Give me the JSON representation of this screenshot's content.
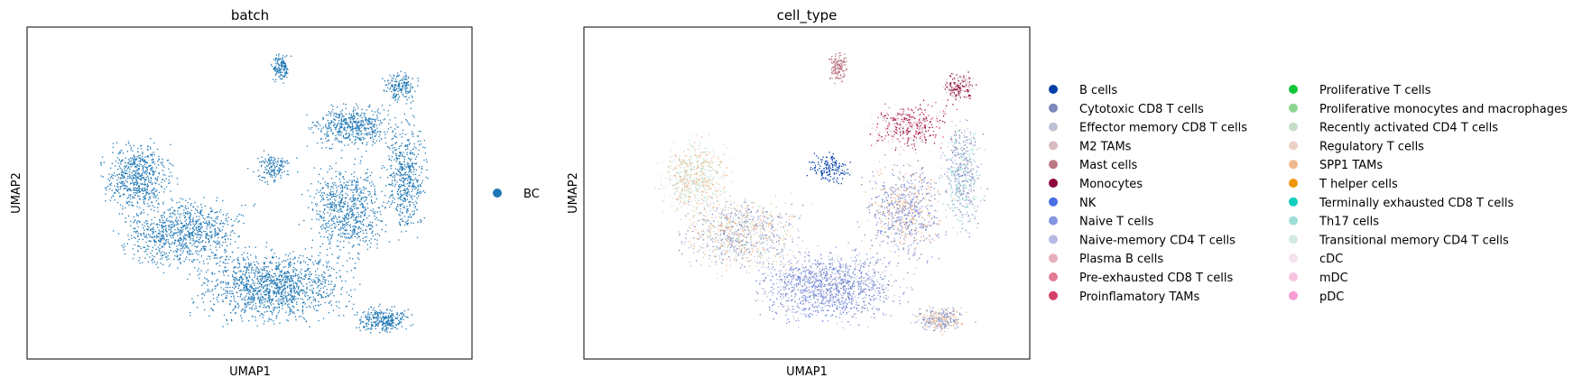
{
  "chart_data": [
    {
      "type": "scatter",
      "title": "batch",
      "xlabel": "UMAP1",
      "ylabel": "UMAP2",
      "legend": {
        "placement": "right",
        "entries": [
          {
            "label": "BC",
            "color": "#1f77b4"
          }
        ]
      },
      "grid": false,
      "ticks": false
    },
    {
      "type": "scatter",
      "title": "cell_type",
      "xlabel": "UMAP1",
      "ylabel": "UMAP2",
      "grid": false,
      "ticks": false,
      "legend": {
        "placement": "right",
        "columns": 2,
        "entries": [
          {
            "label": "B cells",
            "color": "#023fa5"
          },
          {
            "label": "Cytotoxic CD8 T cells",
            "color": "#7d87b9"
          },
          {
            "label": "Effector memory CD8 T cells",
            "color": "#bec1d4"
          },
          {
            "label": "M2 TAMs",
            "color": "#d6bcc0"
          },
          {
            "label": "Mast cells",
            "color": "#bb7784"
          },
          {
            "label": "Monocytes",
            "color": "#8e063b"
          },
          {
            "label": "NK",
            "color": "#4a6fe3"
          },
          {
            "label": "Naive T cells",
            "color": "#8595e1"
          },
          {
            "label": "Naive-memory CD4 T cells",
            "color": "#b5bbe3"
          },
          {
            "label": "Plasma B cells",
            "color": "#e6afb9"
          },
          {
            "label": "Pre-exhausted CD8 T cells",
            "color": "#e07b91"
          },
          {
            "label": "Proinflamatory TAMs",
            "color": "#d33f6a"
          },
          {
            "label": "Proliferative T cells",
            "color": "#11c638"
          },
          {
            "label": "Proliferative monocytes and macrophages",
            "color": "#8dd593"
          },
          {
            "label": "Recently activated CD4 T cells",
            "color": "#c6dec7"
          },
          {
            "label": "Regulatory T cells",
            "color": "#ead3c6"
          },
          {
            "label": "SPP1 TAMs",
            "color": "#f0b98d"
          },
          {
            "label": "T helper cells",
            "color": "#ef9708"
          },
          {
            "label": "Terminally exhausted CD8 T cells",
            "color": "#0fcfc0"
          },
          {
            "label": "Th17 cells",
            "color": "#9cded6"
          },
          {
            "label": "Transitional memory CD4 T cells",
            "color": "#d5eae7"
          },
          {
            "label": "cDC",
            "color": "#f3e1eb"
          },
          {
            "label": "mDC",
            "color": "#f6c4e1"
          },
          {
            "label": "pDC",
            "color": "#f79cd4"
          }
        ]
      }
    }
  ]
}
